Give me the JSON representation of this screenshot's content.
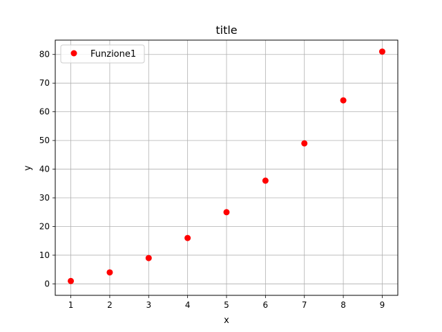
{
  "chart_data": {
    "type": "scatter",
    "title": "title",
    "xlabel": "x",
    "ylabel": "y",
    "xlim": [
      0.6,
      9.4
    ],
    "ylim": [
      -4,
      85
    ],
    "xticks": [
      1,
      2,
      3,
      4,
      5,
      6,
      7,
      8,
      9
    ],
    "yticks": [
      0,
      10,
      20,
      30,
      40,
      50,
      60,
      70,
      80
    ],
    "grid": true,
    "legend_position": "top-left",
    "series": [
      {
        "name": "Funzione1",
        "color": "#ff0000",
        "marker": "circle",
        "x": [
          1,
          2,
          3,
          4,
          5,
          6,
          7,
          8,
          9
        ],
        "y": [
          1,
          4,
          9,
          16,
          25,
          36,
          49,
          64,
          81
        ]
      }
    ]
  }
}
